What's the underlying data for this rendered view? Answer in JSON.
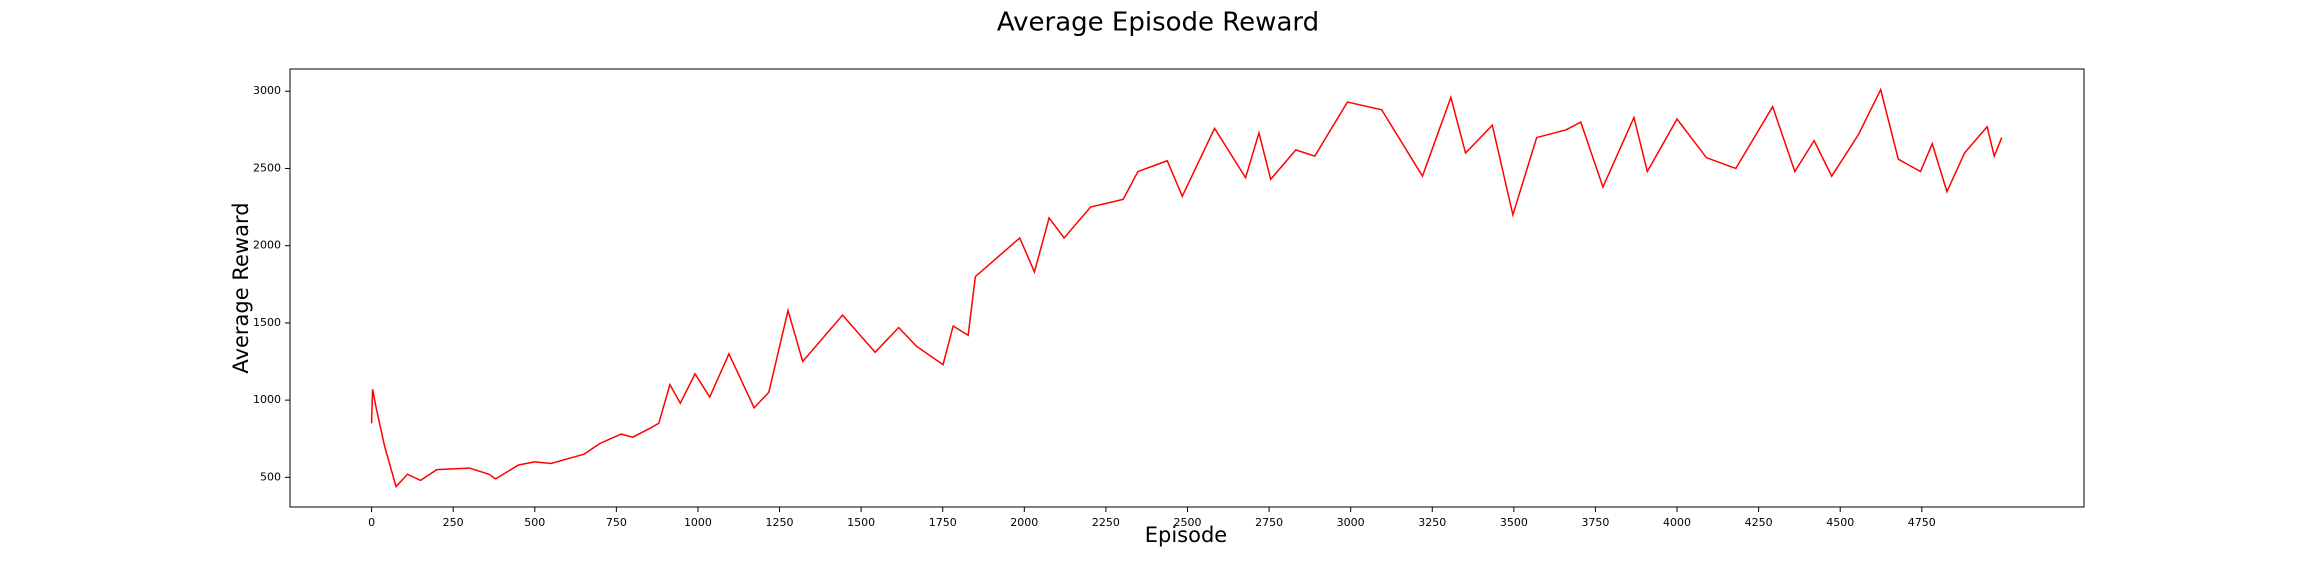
{
  "chart_data": {
    "type": "line",
    "title": "Average Episode Reward",
    "xlabel": "Episode",
    "ylabel": "Average Reward",
    "x": [
      0,
      3,
      15,
      40,
      75,
      110,
      150,
      200,
      300,
      360,
      380,
      450,
      500,
      550,
      600,
      651,
      700,
      765,
      800,
      855,
      880,
      914,
      946,
      991,
      1036,
      1095,
      1172,
      1217,
      1276,
      1321,
      1443,
      1543,
      1615,
      1669,
      1751,
      1782,
      1828,
      1850,
      1986,
      2031,
      2076,
      2122,
      2203,
      2303,
      2348,
      2438,
      2484,
      2583,
      2678,
      2719,
      2755,
      2832,
      2890,
      2990,
      3095,
      3220,
      3307,
      3352,
      3434,
      3497,
      3570,
      3660,
      3705,
      3773,
      3868,
      3909,
      4000,
      4090,
      4180,
      4293,
      4361,
      4420,
      4474,
      4556,
      4624,
      4678,
      4746,
      4782,
      4827,
      4881,
      4950,
      4972,
      4995
    ],
    "series": [
      {
        "name": "Average Reward",
        "color": "#ff0000",
        "values": [
          850,
          1070,
          940,
          700,
          440,
          520,
          480,
          550,
          560,
          520,
          490,
          580,
          600,
          590,
          620,
          650,
          720,
          780,
          760,
          820,
          850,
          1100,
          980,
          1170,
          1020,
          1300,
          950,
          1050,
          1580,
          1250,
          1550,
          1310,
          1470,
          1350,
          1230,
          1480,
          1420,
          1800,
          2050,
          1830,
          2180,
          2050,
          2250,
          2300,
          2480,
          2550,
          2320,
          2760,
          2440,
          2730,
          2430,
          2620,
          2580,
          2930,
          2880,
          2450,
          2960,
          2600,
          2780,
          2200,
          2700,
          2750,
          2800,
          2380,
          2830,
          2480,
          2820,
          2570,
          2500,
          2900,
          2480,
          2680,
          2450,
          2720,
          3010,
          2560,
          2480,
          2660,
          2350,
          2600,
          2770,
          2580,
          2700
        ]
      }
    ],
    "xlim": [
      -250,
      5247
    ],
    "ylim": [
      308,
      3144
    ],
    "xticks": [
      0,
      250,
      500,
      750,
      1000,
      1250,
      1500,
      1750,
      2000,
      2250,
      2500,
      2750,
      3000,
      3250,
      3500,
      3750,
      4000,
      4250,
      4500,
      4750
    ],
    "yticks": [
      500,
      1000,
      1500,
      2000,
      2500,
      3000
    ]
  }
}
